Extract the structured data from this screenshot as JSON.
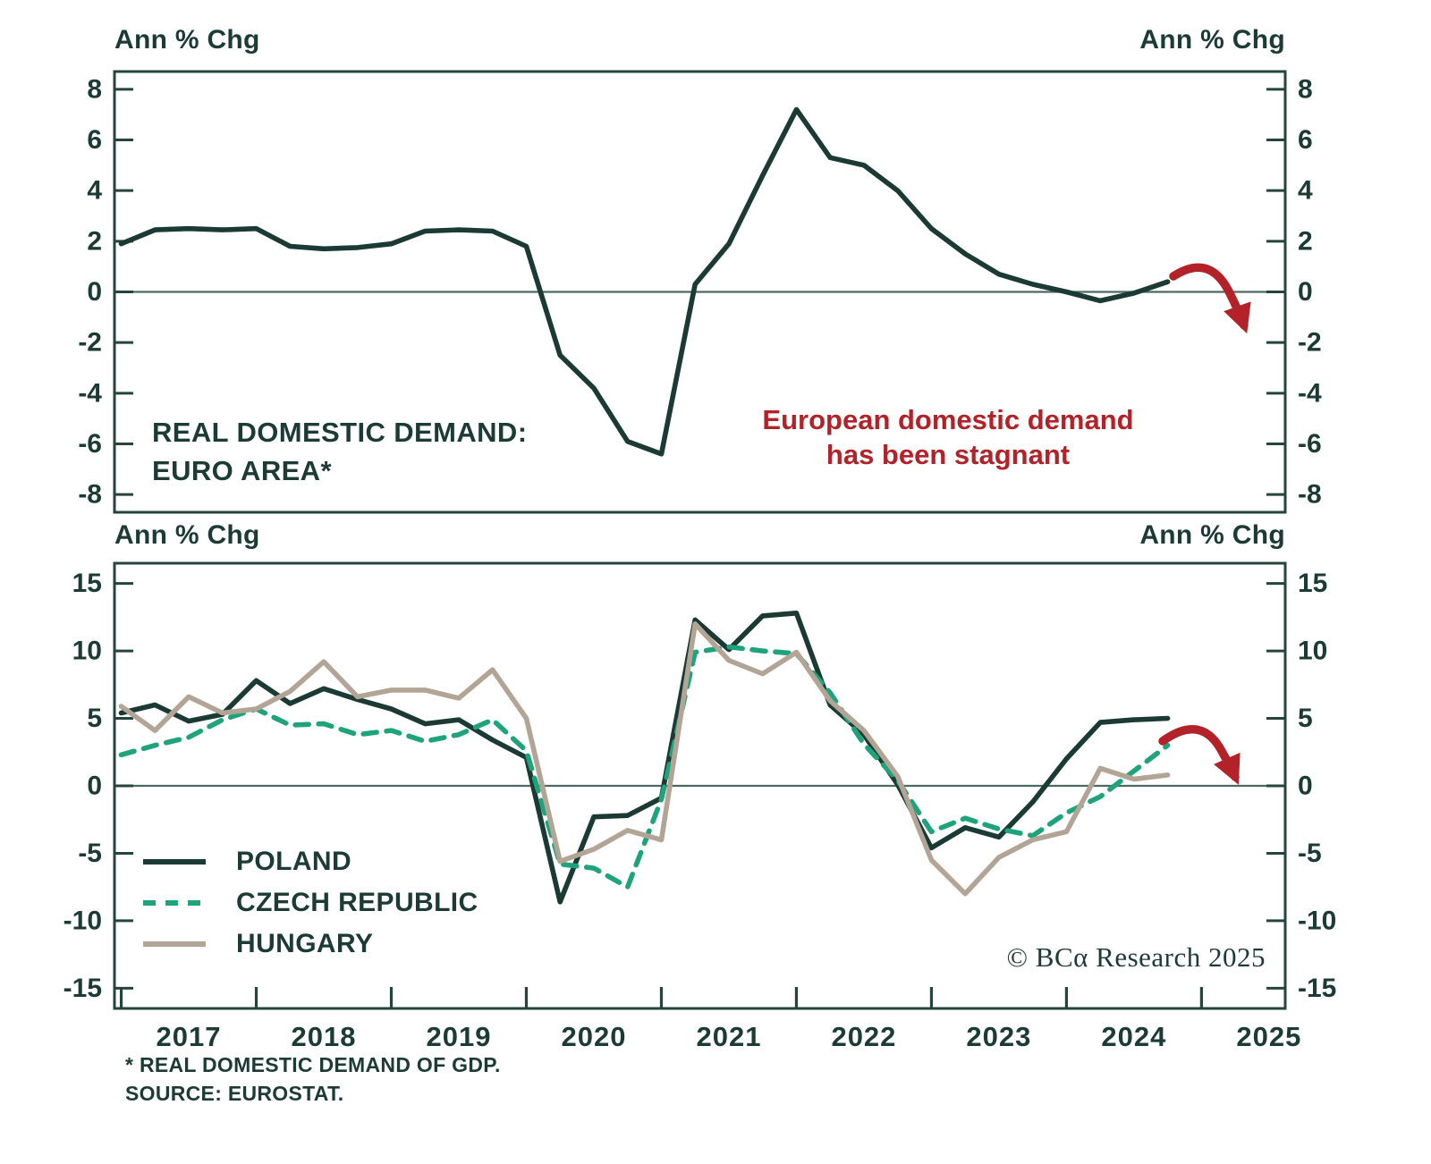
{
  "colors": {
    "text": "#1d3b35",
    "axis": "#24443c",
    "zero_line": "#4d6a61",
    "accent_red": "#b22228"
  },
  "axis_header": "Ann % Chg",
  "footnote": {
    "line1": "* REAL DOMESTIC DEMAND OF GDP.",
    "line2": "SOURCE: EUROSTAT."
  },
  "copyright": "© BCα Research 2025",
  "x_axis": {
    "year_labels": [
      "2017",
      "2018",
      "2019",
      "2020",
      "2021",
      "2022",
      "2023",
      "2024",
      "2025"
    ],
    "xlim": [
      2016.95,
      2025.62
    ]
  },
  "chart_data": [
    {
      "type": "line",
      "panel": "top",
      "title": "REAL DOMESTIC DEMAND: EURO AREA*",
      "title_lines": [
        "REAL DOMESTIC DEMAND:",
        "EURO AREA*"
      ],
      "xlabel": "",
      "ylabel": "Ann % Chg",
      "ylim": [
        -8.7,
        8.7
      ],
      "yticks": [
        8,
        6,
        4,
        2,
        0,
        -2,
        -4,
        -6,
        -8
      ],
      "grid": false,
      "zero_line": true,
      "annotation": {
        "line1": "European domestic demand",
        "line2": "has been stagnant"
      },
      "arrow": "down",
      "x_start": 2017.0,
      "x_step": 0.25,
      "series": [
        {
          "name": "EURO AREA",
          "style": "solid",
          "color": "#1b3a33",
          "values": [
            1.9,
            2.45,
            2.5,
            2.45,
            2.5,
            1.8,
            1.7,
            1.75,
            1.9,
            2.4,
            2.45,
            2.4,
            1.8,
            -2.5,
            -3.8,
            -5.9,
            -6.4,
            0.3,
            1.9,
            4.6,
            7.2,
            5.3,
            5.0,
            4.0,
            2.5,
            1.5,
            0.7,
            0.3,
            0.0,
            -0.35,
            -0.05,
            0.4
          ]
        }
      ]
    },
    {
      "type": "line",
      "panel": "bottom",
      "title": "",
      "xlabel": "",
      "ylabel": "Ann % Chg",
      "ylim": [
        -16.5,
        16.5
      ],
      "yticks": [
        15,
        10,
        5,
        0,
        -5,
        -10,
        -15
      ],
      "grid": false,
      "zero_line": true,
      "legend_position": "lower-left",
      "arrow": "down",
      "x_start": 2017.0,
      "x_step": 0.25,
      "series": [
        {
          "name": "POLAND",
          "style": "solid",
          "color": "#1b3a33",
          "values": [
            5.4,
            6.0,
            4.8,
            5.3,
            7.8,
            6.1,
            7.2,
            6.4,
            5.7,
            4.6,
            4.9,
            3.4,
            2.1,
            -8.6,
            -2.3,
            -2.2,
            -0.9,
            12.3,
            10.1,
            12.6,
            12.8,
            6.0,
            3.8,
            0.1,
            -4.6,
            -3.1,
            -3.8,
            -1.2,
            2.0,
            4.7,
            4.9,
            5.0
          ]
        },
        {
          "name": "CZECH REPUBLIC",
          "style": "dashed",
          "color": "#1ea37b",
          "values": [
            2.3,
            3.0,
            3.6,
            4.9,
            5.7,
            4.5,
            4.6,
            3.8,
            4.1,
            3.3,
            3.8,
            4.9,
            2.6,
            -5.8,
            -6.1,
            -7.5,
            -1.0,
            9.9,
            10.3,
            10.0,
            9.8,
            6.9,
            3.1,
            0.4,
            -3.4,
            -2.4,
            -3.2,
            -3.7,
            -2.0,
            -0.8,
            1.1,
            3.0
          ]
        },
        {
          "name": "HUNGARY",
          "style": "solid",
          "color": "#b3a595",
          "values": [
            5.9,
            4.1,
            6.6,
            5.4,
            5.7,
            7.0,
            9.2,
            6.6,
            7.1,
            7.1,
            6.5,
            8.6,
            5.0,
            -5.6,
            -4.7,
            -3.3,
            -4.0,
            12.0,
            9.3,
            8.3,
            9.9,
            6.3,
            4.1,
            0.7,
            -5.5,
            -8.0,
            -5.3,
            -4.0,
            -3.4,
            1.3,
            0.5,
            0.8
          ]
        }
      ]
    }
  ]
}
